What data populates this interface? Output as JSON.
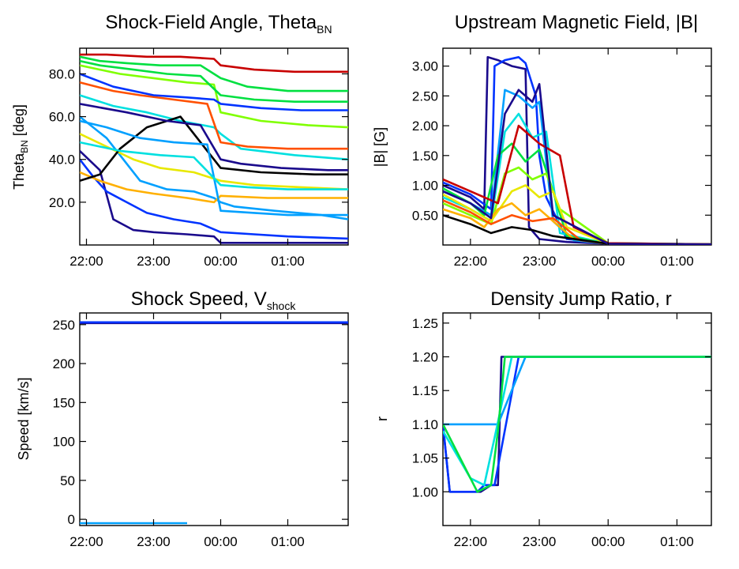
{
  "chart_data": [
    {
      "type": "line",
      "title": {
        "main": "Shock-Field Angle, Theta",
        "sub": "BN"
      },
      "ylabel": {
        "main": "Theta",
        "sub": "BN",
        "rest": " [deg]"
      },
      "xlabel": "",
      "x_ticks": [
        "22:00",
        "23:00",
        "00:00",
        "01:00"
      ],
      "x_tick_hours": [
        0,
        1,
        2,
        3
      ],
      "xlim": [
        -0.1,
        3.9
      ],
      "y_ticks": [
        "20.0",
        "40.0",
        "60.0",
        "80.0"
      ],
      "y_tick_values": [
        20,
        40,
        60,
        80
      ],
      "ylim": [
        0,
        92
      ],
      "grid": false,
      "legend": "none",
      "colormap": [
        "#1a0a8c",
        "#0033ff",
        "#00a0ff",
        "#00e0e0",
        "#00e040",
        "#80ff00",
        "#e8e800",
        "#ffb000",
        "#ff5000",
        "#c80000",
        "#000000"
      ],
      "series": [
        {
          "x": [
            -0.1,
            0.2,
            0.4,
            0.7,
            1.0,
            1.5,
            1.9,
            2.0,
            3.0,
            3.9
          ],
          "y": [
            44,
            35,
            12,
            7,
            6,
            5,
            4,
            1,
            1,
            1
          ]
        },
        {
          "x": [
            -0.1,
            0.1,
            0.3,
            0.6,
            0.9,
            1.3,
            1.7,
            2.0,
            2.5,
            3.0,
            3.9
          ],
          "y": [
            40,
            32,
            25,
            20,
            15,
            12,
            10,
            6,
            5,
            4,
            3
          ]
        },
        {
          "x": [
            -0.1,
            0.3,
            0.8,
            1.2,
            1.6,
            1.9,
            2.0,
            2.2,
            2.8,
            3.5,
            3.9
          ],
          "y": [
            60,
            50,
            30,
            26,
            25,
            22,
            20,
            18,
            16,
            14,
            12
          ]
        },
        {
          "x": [
            -0.1,
            0.4,
            0.9,
            1.4,
            1.9,
            2.0,
            2.3,
            3.1,
            3.9
          ],
          "y": [
            70,
            65,
            62,
            58,
            55,
            52,
            45,
            42,
            40
          ]
        },
        {
          "x": [
            -0.1,
            0.2,
            0.6,
            1.1,
            1.7,
            2.0,
            2.4,
            3.0,
            3.9
          ],
          "y": [
            88,
            86,
            85,
            84,
            84,
            78,
            74,
            72,
            72
          ]
        },
        {
          "x": [
            -0.1,
            0.5,
            1.0,
            1.5,
            1.9,
            2.0,
            2.6,
            3.3,
            3.9
          ],
          "y": [
            84,
            80,
            78,
            76,
            75,
            62,
            58,
            56,
            55
          ]
        },
        {
          "x": [
            -0.1,
            0.3,
            0.7,
            1.1,
            1.6,
            2.0,
            2.5,
            3.2,
            3.9
          ],
          "y": [
            52,
            46,
            40,
            36,
            34,
            30,
            28,
            27,
            26
          ]
        },
        {
          "x": [
            -0.1,
            0.2,
            0.6,
            1.0,
            1.5,
            1.9,
            2.0,
            2.7,
            3.9
          ],
          "y": [
            34,
            30,
            26,
            24,
            22,
            20,
            23,
            22,
            22
          ]
        },
        {
          "x": [
            -0.1,
            0.4,
            0.8,
            1.3,
            1.8,
            2.0,
            2.4,
            3.0,
            3.9
          ],
          "y": [
            76,
            72,
            70,
            68,
            66,
            48,
            46,
            45,
            45
          ]
        },
        {
          "x": [
            -0.1,
            0.3,
            0.9,
            1.4,
            1.9,
            2.0,
            2.5,
            3.1,
            3.9
          ],
          "y": [
            89,
            89,
            88,
            88,
            87,
            84,
            82,
            81,
            81
          ]
        },
        {
          "x": [
            -0.1,
            0.2,
            0.5,
            0.9,
            1.4,
            2.0,
            2.6,
            3.4,
            3.9
          ],
          "y": [
            30,
            33,
            45,
            55,
            60,
            36,
            34,
            33,
            33
          ]
        },
        {
          "x": [
            -0.1,
            0.6,
            1.2,
            1.7,
            2.0,
            2.3,
            2.9,
            3.6,
            3.9
          ],
          "y": [
            66,
            62,
            58,
            56,
            40,
            38,
            36,
            35,
            35
          ]
        },
        {
          "x": [
            -0.1,
            0.4,
            1.0,
            1.5,
            1.9,
            2.0,
            2.6,
            3.2,
            3.9
          ],
          "y": [
            80,
            74,
            70,
            69,
            68,
            66,
            64,
            63,
            63
          ]
        },
        {
          "x": [
            -0.1,
            0.3,
            0.8,
            1.3,
            1.8,
            2.0,
            2.5,
            3.0,
            3.9
          ],
          "y": [
            58,
            55,
            50,
            48,
            47,
            16,
            15,
            14,
            14
          ]
        },
        {
          "x": [
            -0.1,
            0.5,
            1.1,
            1.6,
            2.0,
            2.4,
            3.0,
            3.9
          ],
          "y": [
            48,
            44,
            42,
            41,
            28,
            27,
            26,
            26
          ]
        },
        {
          "x": [
            -0.1,
            0.2,
            0.7,
            1.2,
            1.7,
            2.0,
            2.5,
            3.1,
            3.9
          ],
          "y": [
            86,
            84,
            82,
            80,
            79,
            70,
            68,
            67,
            67
          ]
        }
      ]
    },
    {
      "type": "line",
      "title": {
        "main": "Upstream Magnetic Field, |B|",
        "sub": ""
      },
      "ylabel": {
        "main": "|B| [G]",
        "sub": "",
        "rest": ""
      },
      "xlabel": "",
      "x_ticks": [
        "22:00",
        "23:00",
        "00:00",
        "01:00"
      ],
      "x_tick_hours": [
        0,
        1,
        2,
        3
      ],
      "xlim": [
        -0.4,
        3.5
      ],
      "y_ticks": [
        "0.50",
        "1.00",
        "1.50",
        "2.00",
        "2.50",
        "3.00"
      ],
      "y_tick_values": [
        0.5,
        1.0,
        1.5,
        2.0,
        2.5,
        3.0
      ],
      "ylim": [
        0,
        3.3
      ],
      "grid": false,
      "legend": "none",
      "colormap": [
        "#1a0a8c",
        "#0033ff",
        "#00a0ff",
        "#00e0e0",
        "#00e040",
        "#80ff00",
        "#e8e800",
        "#ffb000",
        "#ff5000",
        "#c80000",
        "#000000"
      ],
      "series": [
        {
          "x": [
            -0.4,
            0.0,
            0.2,
            0.25,
            0.4,
            0.6,
            0.8,
            0.85,
            1.0,
            1.4,
            2.0,
            3.5
          ],
          "y": [
            1.0,
            0.8,
            0.6,
            3.15,
            3.1,
            3.0,
            2.95,
            0.3,
            0.1,
            0.05,
            0.02,
            0.01
          ]
        },
        {
          "x": [
            -0.4,
            0.0,
            0.3,
            0.35,
            0.5,
            0.7,
            0.8,
            0.95,
            1.0,
            1.1,
            1.4,
            2.0,
            3.5
          ],
          "y": [
            1.05,
            0.85,
            0.6,
            3.0,
            3.1,
            3.15,
            3.05,
            2.5,
            1.5,
            0.8,
            0.1,
            0.03,
            0.01
          ]
        },
        {
          "x": [
            -0.4,
            0.0,
            0.3,
            0.5,
            0.7,
            0.9,
            1.0,
            1.2,
            1.5,
            2.0,
            3.5
          ],
          "y": [
            0.9,
            0.7,
            0.5,
            2.6,
            2.5,
            2.3,
            2.4,
            0.4,
            0.08,
            0.02,
            0.01
          ]
        },
        {
          "x": [
            -0.4,
            0.0,
            0.3,
            0.5,
            0.7,
            0.9,
            1.1,
            1.3,
            2.0,
            3.5
          ],
          "y": [
            0.8,
            0.6,
            0.4,
            1.9,
            2.2,
            1.8,
            1.9,
            0.2,
            0.02,
            0.01
          ]
        },
        {
          "x": [
            -0.4,
            0.0,
            0.2,
            0.4,
            0.6,
            0.8,
            1.0,
            1.2,
            1.4,
            2.0,
            3.5
          ],
          "y": [
            0.95,
            0.7,
            0.5,
            1.5,
            1.7,
            1.4,
            1.6,
            0.9,
            0.15,
            0.02,
            0.01
          ]
        },
        {
          "x": [
            -0.4,
            0.0,
            0.3,
            0.5,
            0.7,
            0.9,
            1.1,
            1.3,
            2.0,
            3.5
          ],
          "y": [
            0.7,
            0.5,
            0.35,
            1.2,
            1.3,
            1.1,
            1.2,
            0.6,
            0.03,
            0.01
          ]
        },
        {
          "x": [
            -0.4,
            0.0,
            0.3,
            0.6,
            0.8,
            1.0,
            1.2,
            1.4,
            2.0,
            3.5
          ],
          "y": [
            0.85,
            0.6,
            0.4,
            0.9,
            1.0,
            0.8,
            0.9,
            0.3,
            0.02,
            0.01
          ]
        },
        {
          "x": [
            -0.4,
            0.0,
            0.2,
            0.4,
            0.6,
            0.8,
            1.0,
            1.5,
            2.0,
            3.5
          ],
          "y": [
            0.6,
            0.45,
            0.3,
            0.6,
            0.7,
            0.5,
            0.6,
            0.1,
            0.02,
            0.01
          ]
        },
        {
          "x": [
            -0.4,
            0.0,
            0.3,
            0.6,
            0.9,
            1.2,
            1.6,
            2.0,
            3.5
          ],
          "y": [
            0.75,
            0.55,
            0.35,
            0.5,
            0.4,
            0.45,
            0.08,
            0.02,
            0.01
          ]
        },
        {
          "x": [
            -0.4,
            0.0,
            0.4,
            0.7,
            1.0,
            1.3,
            1.5,
            2.0,
            3.5
          ],
          "y": [
            1.1,
            0.9,
            0.7,
            2.0,
            1.7,
            1.5,
            0.3,
            0.03,
            0.01
          ]
        },
        {
          "x": [
            -0.4,
            0.0,
            0.3,
            0.6,
            0.9,
            1.2,
            2.0,
            3.5
          ],
          "y": [
            0.5,
            0.35,
            0.2,
            0.3,
            0.25,
            0.15,
            0.02,
            0.01
          ]
        },
        {
          "x": [
            -0.4,
            0.0,
            0.3,
            0.5,
            0.7,
            0.9,
            1.0,
            1.2,
            2.0,
            3.5
          ],
          "y": [
            0.9,
            0.7,
            0.45,
            2.2,
            2.6,
            2.4,
            2.7,
            0.5,
            0.02,
            0.01
          ]
        }
      ]
    },
    {
      "type": "line",
      "title": {
        "main": "Shock Speed, V",
        "sub": "shock"
      },
      "ylabel": {
        "main": "Speed [km/s]",
        "sub": "",
        "rest": ""
      },
      "xlabel": "",
      "x_ticks": [
        "22:00",
        "23:00",
        "00:00",
        "01:00"
      ],
      "x_tick_hours": [
        0,
        1,
        2,
        3
      ],
      "xlim": [
        -0.1,
        3.9
      ],
      "y_ticks": [
        "0",
        "50",
        "100",
        "150",
        "200",
        "250"
      ],
      "y_tick_values": [
        0,
        50,
        100,
        150,
        200,
        250
      ],
      "ylim": [
        -8,
        265
      ],
      "grid": false,
      "legend": "none",
      "colormap": [
        "#1a0a8c",
        "#0033ff",
        "#00a0ff",
        "#00e0e0",
        "#00e040",
        "#80ff00",
        "#e8e800",
        "#ffb000",
        "#ff5000",
        "#c80000",
        "#000000"
      ],
      "series": [
        {
          "x": [
            -0.1,
            3.9
          ],
          "y": [
            252,
            252
          ]
        },
        {
          "x": [
            -0.1,
            3.9
          ],
          "y": [
            253,
            253
          ]
        },
        {
          "x": [
            -0.1,
            1.5
          ],
          "y": [
            -5,
            -5
          ]
        }
      ]
    },
    {
      "type": "line",
      "title": {
        "main": "Density Jump Ratio, r",
        "sub": ""
      },
      "ylabel": {
        "main": "r",
        "sub": "",
        "rest": ""
      },
      "xlabel": "",
      "x_ticks": [
        "22:00",
        "23:00",
        "00:00",
        "01:00"
      ],
      "x_tick_hours": [
        0,
        1,
        2,
        3
      ],
      "xlim": [
        -0.4,
        3.5
      ],
      "y_ticks": [
        "1.00",
        "1.05",
        "1.10",
        "1.15",
        "1.20",
        "1.25"
      ],
      "y_tick_values": [
        1.0,
        1.05,
        1.1,
        1.15,
        1.2,
        1.25
      ],
      "ylim": [
        0.95,
        1.265
      ],
      "grid": false,
      "legend": "none",
      "colormap": [
        "#1a0a8c",
        "#0033ff",
        "#00a0ff",
        "#00e0e0",
        "#00e040",
        "#80ff00",
        "#e8e800",
        "#ffb000",
        "#ff5000",
        "#c80000",
        "#000000"
      ],
      "series": [
        {
          "x": [
            -0.4,
            -0.3,
            0.0,
            0.15,
            0.3,
            0.4,
            0.45,
            3.5
          ],
          "y": [
            1.1,
            1.0,
            1.0,
            1.0,
            1.01,
            1.01,
            1.2,
            1.2
          ]
        },
        {
          "x": [
            -0.4,
            -0.3,
            0.0,
            0.1,
            0.2,
            0.35,
            0.7,
            3.5
          ],
          "y": [
            1.1,
            1.0,
            1.0,
            1.0,
            1.01,
            1.01,
            1.2,
            1.2
          ]
        },
        {
          "x": [
            -0.4,
            0.0,
            0.3,
            0.4,
            0.8,
            3.5
          ],
          "y": [
            1.1,
            1.1,
            1.1,
            1.1,
            1.2,
            1.2
          ]
        },
        {
          "x": [
            -0.4,
            0.0,
            0.2,
            0.35,
            0.6,
            3.5
          ],
          "y": [
            1.09,
            1.02,
            1.01,
            1.08,
            1.2,
            1.2
          ]
        },
        {
          "x": [
            -0.4,
            0.1,
            0.3,
            0.4,
            0.5,
            3.5
          ],
          "y": [
            1.1,
            1.0,
            1.01,
            1.09,
            1.2,
            1.2
          ]
        }
      ]
    }
  ]
}
